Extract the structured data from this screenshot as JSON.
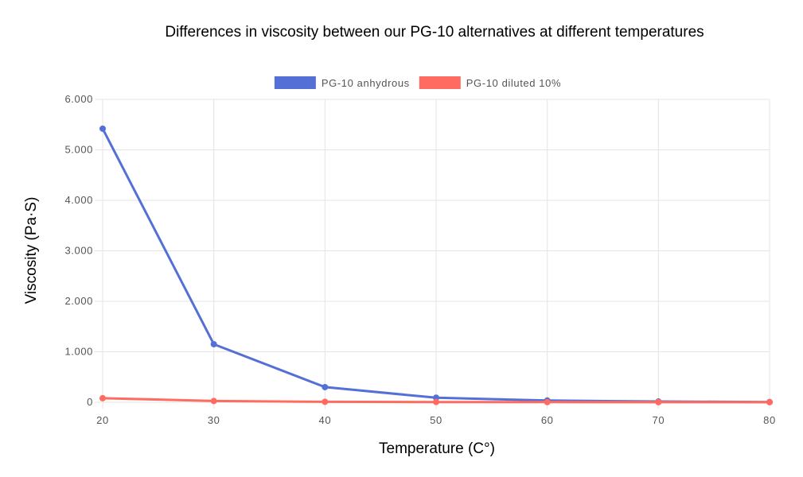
{
  "chart_data": {
    "type": "line",
    "title": "Differences in viscosity between our PG-10 alternatives at different temperatures",
    "xlabel": "Temperature (C°)",
    "ylabel": "Viscosity (Pa·S)",
    "x": [
      20,
      30,
      40,
      50,
      60,
      70,
      80
    ],
    "x_tick_labels": [
      "20",
      "30",
      "40",
      "50",
      "60",
      "70",
      "80"
    ],
    "ylim": [
      0,
      6000
    ],
    "y_ticks": [
      0,
      1000,
      2000,
      3000,
      4000,
      5000,
      6000
    ],
    "y_tick_labels": [
      "0",
      "1.000",
      "2.000",
      "3.000",
      "4.000",
      "5.000",
      "6.000"
    ],
    "grid": true,
    "legend_position": "top",
    "series": [
      {
        "name": "PG-10 anhydrous",
        "color": "#5470d6",
        "values": [
          5420,
          1150,
          300,
          90,
          35,
          15,
          5
        ]
      },
      {
        "name": "PG-10 diluted 10%",
        "color": "#ff6b61",
        "values": [
          80,
          25,
          10,
          5,
          3,
          2,
          1
        ]
      }
    ]
  }
}
